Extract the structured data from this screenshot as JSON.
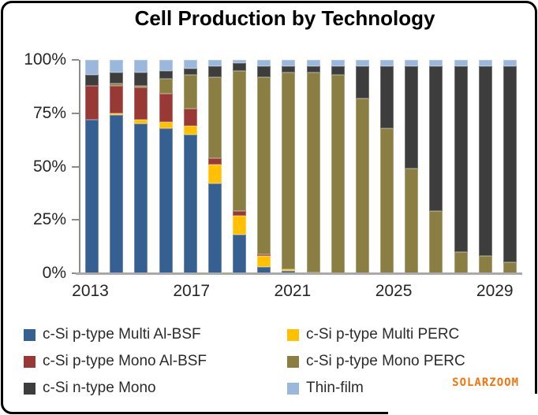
{
  "watermark": {
    "text": "SOLARZOOM",
    "color": "#f2740b"
  },
  "colors": {
    "axis_line": "#8c8c8c",
    "baseline": "#a9a9a9",
    "axis_text": "#262626",
    "legend_text": "#2b2b2b",
    "title_text": "#000000",
    "background": "#ffffff",
    "frame_border": "#000000"
  },
  "chart_data": {
    "type": "bar",
    "stacked": true,
    "units": "percent",
    "title": "Cell Production by Technology",
    "xlabel": "",
    "ylabel": "",
    "ylim": [
      0,
      100
    ],
    "grid": false,
    "legend_position": "bottom",
    "categories": [
      "2013",
      "2014",
      "2015",
      "2016",
      "2017",
      "2018",
      "2019",
      "2020",
      "2021",
      "2022",
      "2023",
      "2024",
      "2025",
      "2026",
      "2027",
      "2028",
      "2029",
      "2030"
    ],
    "x_tick_labels": [
      "2013",
      "2017",
      "2021",
      "2025",
      "2029"
    ],
    "x_tick_indices": [
      0,
      4,
      8,
      12,
      16
    ],
    "y_tick_labels": [
      "100%",
      "75%",
      "50%",
      "25%",
      "0%"
    ],
    "series": [
      {
        "name": "c-Si p-type Multi Al-BSF",
        "color": "#366092",
        "values": [
          72,
          74,
          70,
          68,
          65,
          42,
          18,
          3,
          1,
          0.5,
          0,
          0,
          0,
          0,
          0,
          0,
          0,
          0
        ]
      },
      {
        "name": "c-Si p-type Multi PERC",
        "color": "#ffc000",
        "values": [
          0,
          1,
          2,
          3,
          4,
          9,
          9,
          5,
          1,
          0,
          0,
          0,
          0,
          0,
          0,
          0,
          0,
          0
        ]
      },
      {
        "name": "c-Si p-type Mono Al-BSF",
        "color": "#993936",
        "values": [
          16,
          13,
          15,
          13,
          8,
          3,
          2,
          1,
          0,
          0,
          0,
          0,
          0,
          0,
          0,
          0,
          0,
          0
        ]
      },
      {
        "name": "c-Si p-type Mono PERC",
        "color": "#8a7e43",
        "values": [
          0,
          1,
          1,
          7,
          16,
          38,
          66,
          83,
          92,
          93.5,
          93,
          82,
          68,
          49,
          29,
          10,
          8,
          5
        ]
      },
      {
        "name": "c-Si n-type Mono",
        "color": "#3d3d3d",
        "values": [
          5,
          5,
          6,
          4,
          3,
          5,
          3.5,
          5,
          3,
          3,
          4,
          15,
          29,
          48,
          68,
          87,
          89,
          92
        ]
      },
      {
        "name": "Thin-film",
        "color": "#9cb7dc",
        "values": [
          7,
          6,
          6,
          5,
          4,
          3,
          1.5,
          3,
          3,
          3,
          3,
          3,
          3,
          3,
          3,
          3,
          3,
          3
        ]
      }
    ]
  }
}
